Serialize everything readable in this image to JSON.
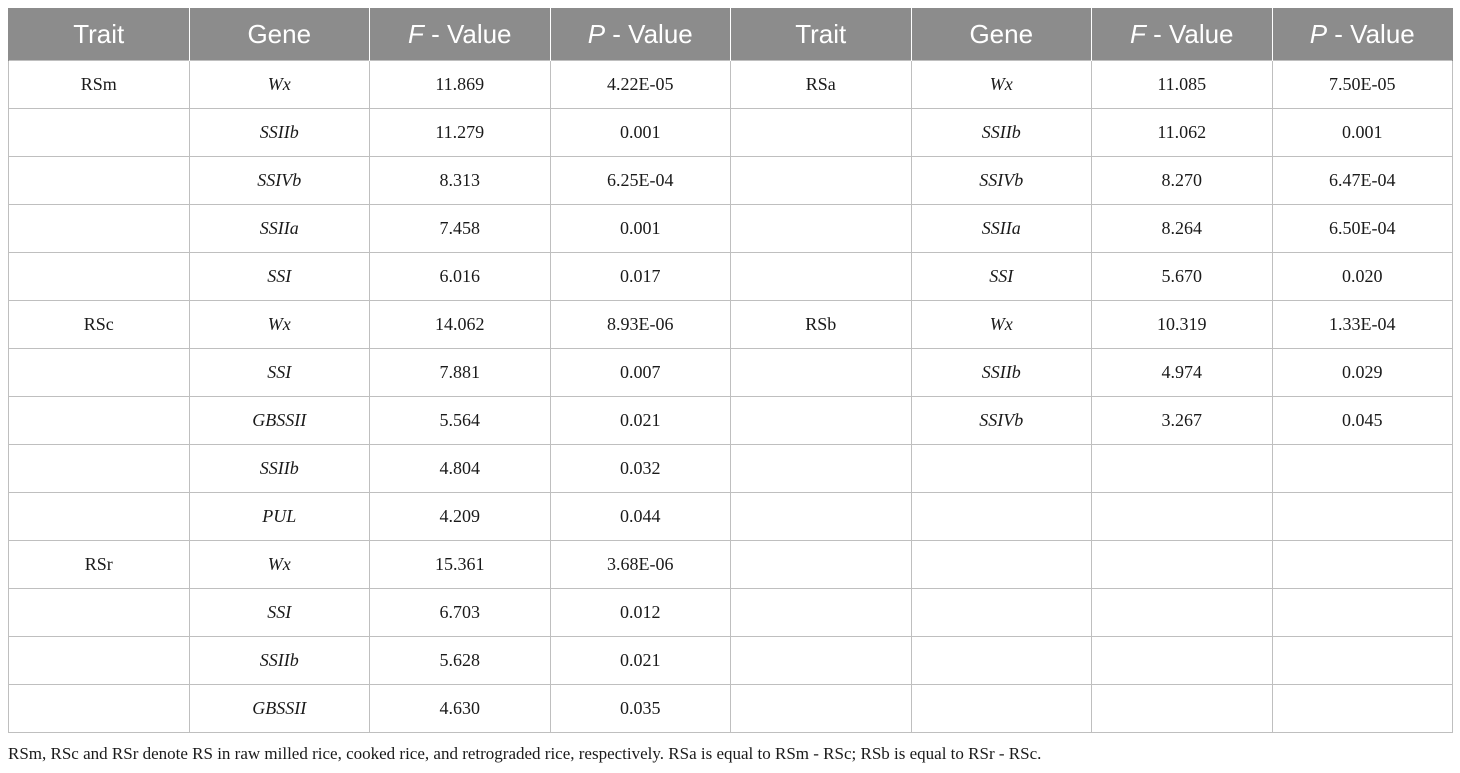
{
  "header": {
    "left": {
      "trait": "Trait",
      "gene": "Gene",
      "f_label_var": "F",
      "f_label_rest": " - Value",
      "p_label_var": "P",
      "p_label_rest": " - Value"
    },
    "right": {
      "trait": "Trait",
      "gene": "Gene",
      "f_label_var": "F",
      "f_label_rest": " - Value",
      "p_label_var": "P",
      "p_label_rest": " - Value"
    }
  },
  "rows": [
    {
      "lt": "RSm",
      "lg": "Wx",
      "lf": "11.869",
      "lp": "4.22E-05",
      "rt": "RSa",
      "rg": "Wx",
      "rf": "11.085",
      "rp": "7.50E-05"
    },
    {
      "lt": "",
      "lg": "SSIIb",
      "lf": "11.279",
      "lp": "0.001",
      "rt": "",
      "rg": "SSIIb",
      "rf": "11.062",
      "rp": "0.001"
    },
    {
      "lt": "",
      "lg": "SSIVb",
      "lf": "8.313",
      "lp": "6.25E-04",
      "rt": "",
      "rg": "SSIVb",
      "rf": "8.270",
      "rp": "6.47E-04"
    },
    {
      "lt": "",
      "lg": "SSIIa",
      "lf": "7.458",
      "lp": "0.001",
      "rt": "",
      "rg": "SSIIa",
      "rf": "8.264",
      "rp": "6.50E-04"
    },
    {
      "lt": "",
      "lg": "SSI",
      "lf": "6.016",
      "lp": "0.017",
      "rt": "",
      "rg": "SSI",
      "rf": "5.670",
      "rp": "0.020"
    },
    {
      "lt": "RSc",
      "lg": "Wx",
      "lf": "14.062",
      "lp": "8.93E-06",
      "rt": "RSb",
      "rg": "Wx",
      "rf": "10.319",
      "rp": "1.33E-04"
    },
    {
      "lt": "",
      "lg": "SSI",
      "lf": "7.881",
      "lp": "0.007",
      "rt": "",
      "rg": "SSIIb",
      "rf": "4.974",
      "rp": "0.029"
    },
    {
      "lt": "",
      "lg": "GBSSII",
      "lf": "5.564",
      "lp": "0.021",
      "rt": "",
      "rg": "SSIVb",
      "rf": "3.267",
      "rp": "0.045"
    },
    {
      "lt": "",
      "lg": "SSIIb",
      "lf": "4.804",
      "lp": "0.032",
      "rt": "",
      "rg": "",
      "rf": "",
      "rp": ""
    },
    {
      "lt": "",
      "lg": "PUL",
      "lf": "4.209",
      "lp": "0.044",
      "rt": "",
      "rg": "",
      "rf": "",
      "rp": ""
    },
    {
      "lt": "RSr",
      "lg": "Wx",
      "lf": "15.361",
      "lp": "3.68E-06",
      "rt": "",
      "rg": "",
      "rf": "",
      "rp": ""
    },
    {
      "lt": "",
      "lg": "SSI",
      "lf": "6.703",
      "lp": "0.012",
      "rt": "",
      "rg": "",
      "rf": "",
      "rp": ""
    },
    {
      "lt": "",
      "lg": "SSIIb",
      "lf": "5.628",
      "lp": "0.021",
      "rt": "",
      "rg": "",
      "rf": "",
      "rp": ""
    },
    {
      "lt": "",
      "lg": "GBSSII",
      "lf": "4.630",
      "lp": "0.035",
      "rt": "",
      "rg": "",
      "rf": "",
      "rp": ""
    }
  ],
  "footnote": "RSm, RSc and RSr denote RS in raw milled rice, cooked rice, and retrograded rice, respectively. RSa is equal to RSm - RSc; RSb is equal to RSr - RSc."
}
